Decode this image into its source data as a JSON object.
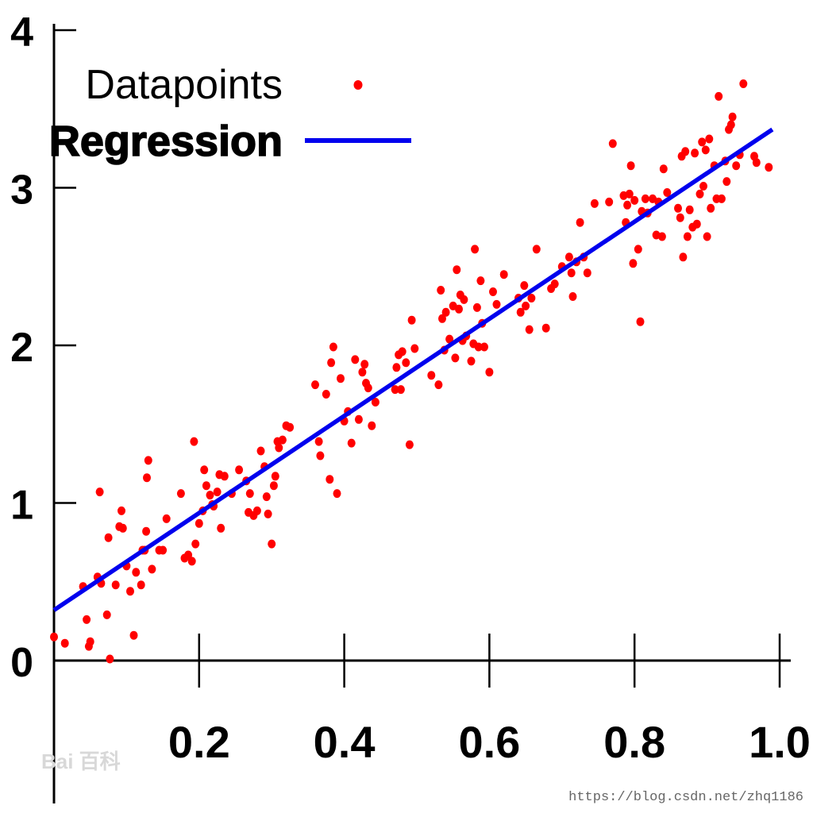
{
  "chart_data": {
    "type": "scatter",
    "title": "",
    "xlabel": "",
    "ylabel": "",
    "xlim": [
      0,
      1.02
    ],
    "ylim": [
      0,
      4
    ],
    "x_ticks": [
      0.2,
      0.4,
      0.6,
      0.8,
      1.0
    ],
    "x_tick_labels": [
      "0.2",
      "0.4",
      "0.6",
      "0.8",
      "1.0"
    ],
    "y_ticks": [
      0,
      1,
      2,
      3,
      4
    ],
    "y_tick_labels": [
      "0",
      "1",
      "2",
      "3",
      "4"
    ],
    "grid": false,
    "legend": {
      "placement": "top-left",
      "entries": [
        "Datapoints",
        "Regression"
      ]
    },
    "series": [
      {
        "name": "Datapoints",
        "kind": "scatter",
        "color": "#ff0000",
        "points": [
          [
            0.0,
            0.15
          ],
          [
            0.015,
            0.11
          ],
          [
            0.04,
            0.47
          ],
          [
            0.045,
            0.26
          ],
          [
            0.048,
            0.09
          ],
          [
            0.05,
            0.12
          ],
          [
            0.06,
            0.53
          ],
          [
            0.063,
            1.07
          ],
          [
            0.065,
            0.49
          ],
          [
            0.073,
            0.29
          ],
          [
            0.075,
            0.78
          ],
          [
            0.077,
            0.01
          ],
          [
            0.085,
            0.48
          ],
          [
            0.09,
            0.85
          ],
          [
            0.093,
            0.95
          ],
          [
            0.095,
            0.84
          ],
          [
            0.1,
            0.6
          ],
          [
            0.105,
            0.44
          ],
          [
            0.11,
            0.16
          ],
          [
            0.113,
            0.56
          ],
          [
            0.12,
            0.48
          ],
          [
            0.122,
            0.7
          ],
          [
            0.125,
            0.7
          ],
          [
            0.127,
            0.82
          ],
          [
            0.128,
            1.16
          ],
          [
            0.13,
            1.27
          ],
          [
            0.135,
            0.58
          ],
          [
            0.145,
            0.7
          ],
          [
            0.15,
            0.7
          ],
          [
            0.155,
            0.9
          ],
          [
            0.175,
            1.06
          ],
          [
            0.18,
            0.65
          ],
          [
            0.185,
            0.67
          ],
          [
            0.19,
            0.63
          ],
          [
            0.193,
            1.39
          ],
          [
            0.195,
            0.74
          ],
          [
            0.2,
            0.87
          ],
          [
            0.205,
            0.95
          ],
          [
            0.207,
            1.21
          ],
          [
            0.21,
            1.11
          ],
          [
            0.215,
            1.05
          ],
          [
            0.218,
            0.99
          ],
          [
            0.22,
            0.98
          ],
          [
            0.225,
            1.07
          ],
          [
            0.228,
            1.18
          ],
          [
            0.23,
            0.84
          ],
          [
            0.235,
            1.17
          ],
          [
            0.245,
            1.06
          ],
          [
            0.255,
            1.21
          ],
          [
            0.265,
            1.14
          ],
          [
            0.268,
            0.94
          ],
          [
            0.27,
            1.06
          ],
          [
            0.275,
            0.92
          ],
          [
            0.28,
            0.95
          ],
          [
            0.285,
            1.33
          ],
          [
            0.29,
            1.23
          ],
          [
            0.293,
            1.04
          ],
          [
            0.295,
            0.93
          ],
          [
            0.3,
            0.74
          ],
          [
            0.303,
            1.11
          ],
          [
            0.305,
            1.17
          ],
          [
            0.308,
            1.39
          ],
          [
            0.31,
            1.35
          ],
          [
            0.315,
            1.4
          ],
          [
            0.32,
            1.49
          ],
          [
            0.325,
            1.48
          ],
          [
            0.36,
            1.75
          ],
          [
            0.365,
            1.39
          ],
          [
            0.367,
            1.3
          ],
          [
            0.375,
            1.69
          ],
          [
            0.38,
            1.15
          ],
          [
            0.382,
            1.89
          ],
          [
            0.385,
            1.99
          ],
          [
            0.39,
            1.06
          ],
          [
            0.395,
            1.79
          ],
          [
            0.4,
            1.52
          ],
          [
            0.405,
            1.58
          ],
          [
            0.41,
            1.38
          ],
          [
            0.415,
            1.91
          ],
          [
            0.42,
            1.53
          ],
          [
            0.425,
            1.83
          ],
          [
            0.428,
            1.88
          ],
          [
            0.43,
            1.76
          ],
          [
            0.433,
            1.73
          ],
          [
            0.438,
            1.49
          ],
          [
            0.443,
            1.64
          ],
          [
            0.47,
            1.72
          ],
          [
            0.472,
            1.86
          ],
          [
            0.475,
            1.94
          ],
          [
            0.478,
            1.72
          ],
          [
            0.48,
            1.96
          ],
          [
            0.485,
            1.89
          ],
          [
            0.49,
            1.37
          ],
          [
            0.493,
            2.16
          ],
          [
            0.497,
            1.98
          ],
          [
            0.52,
            1.81
          ],
          [
            0.53,
            1.75
          ],
          [
            0.533,
            2.35
          ],
          [
            0.535,
            2.17
          ],
          [
            0.538,
            1.97
          ],
          [
            0.54,
            2.21
          ],
          [
            0.545,
            2.04
          ],
          [
            0.55,
            2.25
          ],
          [
            0.553,
            1.92
          ],
          [
            0.555,
            2.48
          ],
          [
            0.558,
            2.23
          ],
          [
            0.56,
            2.32
          ],
          [
            0.563,
            2.03
          ],
          [
            0.565,
            2.29
          ],
          [
            0.568,
            2.06
          ],
          [
            0.575,
            1.9
          ],
          [
            0.578,
            2.01
          ],
          [
            0.58,
            2.61
          ],
          [
            0.583,
            2.24
          ],
          [
            0.585,
            1.99
          ],
          [
            0.588,
            2.41
          ],
          [
            0.59,
            2.14
          ],
          [
            0.593,
            1.99
          ],
          [
            0.6,
            1.83
          ],
          [
            0.605,
            2.34
          ],
          [
            0.61,
            2.26
          ],
          [
            0.62,
            2.45
          ],
          [
            0.64,
            2.3
          ],
          [
            0.643,
            2.21
          ],
          [
            0.648,
            2.38
          ],
          [
            0.65,
            2.25
          ],
          [
            0.655,
            2.1
          ],
          [
            0.658,
            2.3
          ],
          [
            0.665,
            2.61
          ],
          [
            0.678,
            2.11
          ],
          [
            0.685,
            2.36
          ],
          [
            0.69,
            2.39
          ],
          [
            0.7,
            2.5
          ],
          [
            0.71,
            2.56
          ],
          [
            0.713,
            2.46
          ],
          [
            0.715,
            2.31
          ],
          [
            0.72,
            2.53
          ],
          [
            0.725,
            2.78
          ],
          [
            0.73,
            2.56
          ],
          [
            0.735,
            2.46
          ],
          [
            0.745,
            2.9
          ],
          [
            0.765,
            2.91
          ],
          [
            0.77,
            3.28
          ],
          [
            0.785,
            2.95
          ],
          [
            0.788,
            2.78
          ],
          [
            0.79,
            2.89
          ],
          [
            0.793,
            2.96
          ],
          [
            0.795,
            3.14
          ],
          [
            0.798,
            2.52
          ],
          [
            0.8,
            2.92
          ],
          [
            0.805,
            2.61
          ],
          [
            0.808,
            2.15
          ],
          [
            0.81,
            2.85
          ],
          [
            0.815,
            2.93
          ],
          [
            0.818,
            2.84
          ],
          [
            0.825,
            2.93
          ],
          [
            0.83,
            2.7
          ],
          [
            0.833,
            2.91
          ],
          [
            0.838,
            2.69
          ],
          [
            0.84,
            3.12
          ],
          [
            0.845,
            2.97
          ],
          [
            0.86,
            2.87
          ],
          [
            0.863,
            2.81
          ],
          [
            0.865,
            3.2
          ],
          [
            0.867,
            2.56
          ],
          [
            0.87,
            3.23
          ],
          [
            0.873,
            2.69
          ],
          [
            0.876,
            2.86
          ],
          [
            0.88,
            2.75
          ],
          [
            0.883,
            3.22
          ],
          [
            0.886,
            2.77
          ],
          [
            0.89,
            2.96
          ],
          [
            0.893,
            3.29
          ],
          [
            0.895,
            3.01
          ],
          [
            0.898,
            3.24
          ],
          [
            0.9,
            2.69
          ],
          [
            0.903,
            3.31
          ],
          [
            0.905,
            2.87
          ],
          [
            0.91,
            3.14
          ],
          [
            0.913,
            2.93
          ],
          [
            0.916,
            3.58
          ],
          [
            0.92,
            2.93
          ],
          [
            0.925,
            3.17
          ],
          [
            0.927,
            3.04
          ],
          [
            0.93,
            3.37
          ],
          [
            0.933,
            3.4
          ],
          [
            0.935,
            3.45
          ],
          [
            0.94,
            3.14
          ],
          [
            0.945,
            3.21
          ],
          [
            0.95,
            3.66
          ],
          [
            0.965,
            3.2
          ],
          [
            0.968,
            3.16
          ],
          [
            0.985,
            3.13
          ]
        ]
      },
      {
        "name": "Regression",
        "kind": "line",
        "color": "#0000ee",
        "x": [
          0.0,
          0.99
        ],
        "y": [
          0.32,
          3.37
        ]
      }
    ]
  },
  "watermark": {
    "url": "https://blog.csdn.net/zhq1186",
    "brand": "Bai 百科"
  }
}
